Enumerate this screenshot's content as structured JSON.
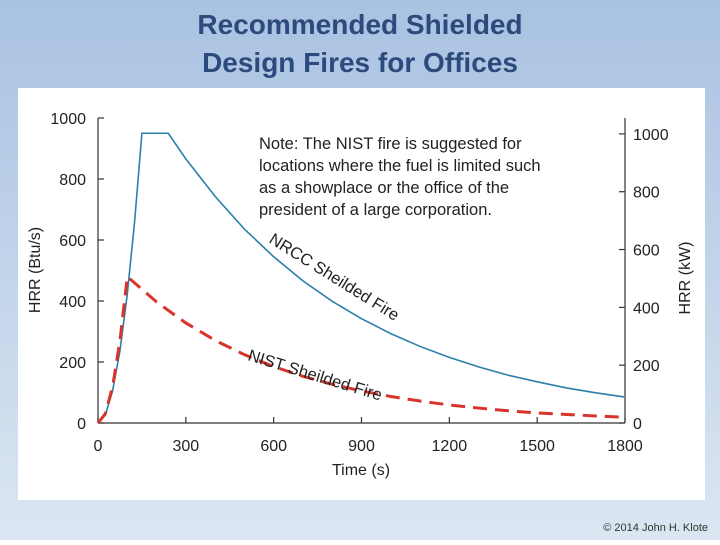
{
  "chart_data": {
    "type": "line",
    "title": [
      "Recommended Shielded",
      "Design Fires for Offices"
    ],
    "xlabel": "Time (s)",
    "ylabel": "HRR (Btu/s)",
    "y2label": "HRR (kW)",
    "xlim": [
      0,
      1800
    ],
    "xticks": [
      0,
      300,
      600,
      900,
      1200,
      1500,
      1800
    ],
    "ylim": [
      0,
      1000
    ],
    "yticks": [
      0,
      200,
      400,
      600,
      800,
      1000
    ],
    "y2lim": [
      0,
      1055
    ],
    "y2ticks": [
      0,
      200,
      400,
      600,
      800,
      1000
    ],
    "note": [
      "Note: The NIST fire is suggested for",
      "locations where the fuel is limited such",
      "as a showplace or the office of the",
      "president of a large corporation."
    ],
    "series": [
      {
        "name": "NRCC Sheilded Fire",
        "color": "#2b7fab",
        "line_style": "solid",
        "x": [
          0,
          25,
          50,
          75,
          100,
          125,
          150,
          240,
          300,
          400,
          500,
          600,
          700,
          800,
          900,
          1000,
          1100,
          1200,
          1300,
          1400,
          1500,
          1600,
          1700,
          1800
        ],
        "values": [
          0,
          26,
          106,
          237,
          422,
          660,
          950,
          950,
          866,
          743,
          636,
          545,
          466,
          399,
          342,
          293,
          251,
          215,
          184,
          157,
          135,
          115,
          99,
          85
        ]
      },
      {
        "name": "NIST Sheilded Fire",
        "color": "#d9342b",
        "line_style": "dashed",
        "x": [
          0,
          25,
          50,
          75,
          100,
          200,
          300,
          400,
          500,
          600,
          700,
          800,
          900,
          1000,
          1100,
          1200,
          1300,
          1400,
          1500,
          1600,
          1700,
          1800
        ],
        "values": [
          0,
          30,
          120,
          270,
          480,
          397,
          328,
          271,
          224,
          185,
          153,
          127,
          105,
          87,
          72,
          59,
          49,
          40,
          33,
          28,
          23,
          19
        ]
      }
    ],
    "copyright": "© 2014 John H. Klote"
  }
}
